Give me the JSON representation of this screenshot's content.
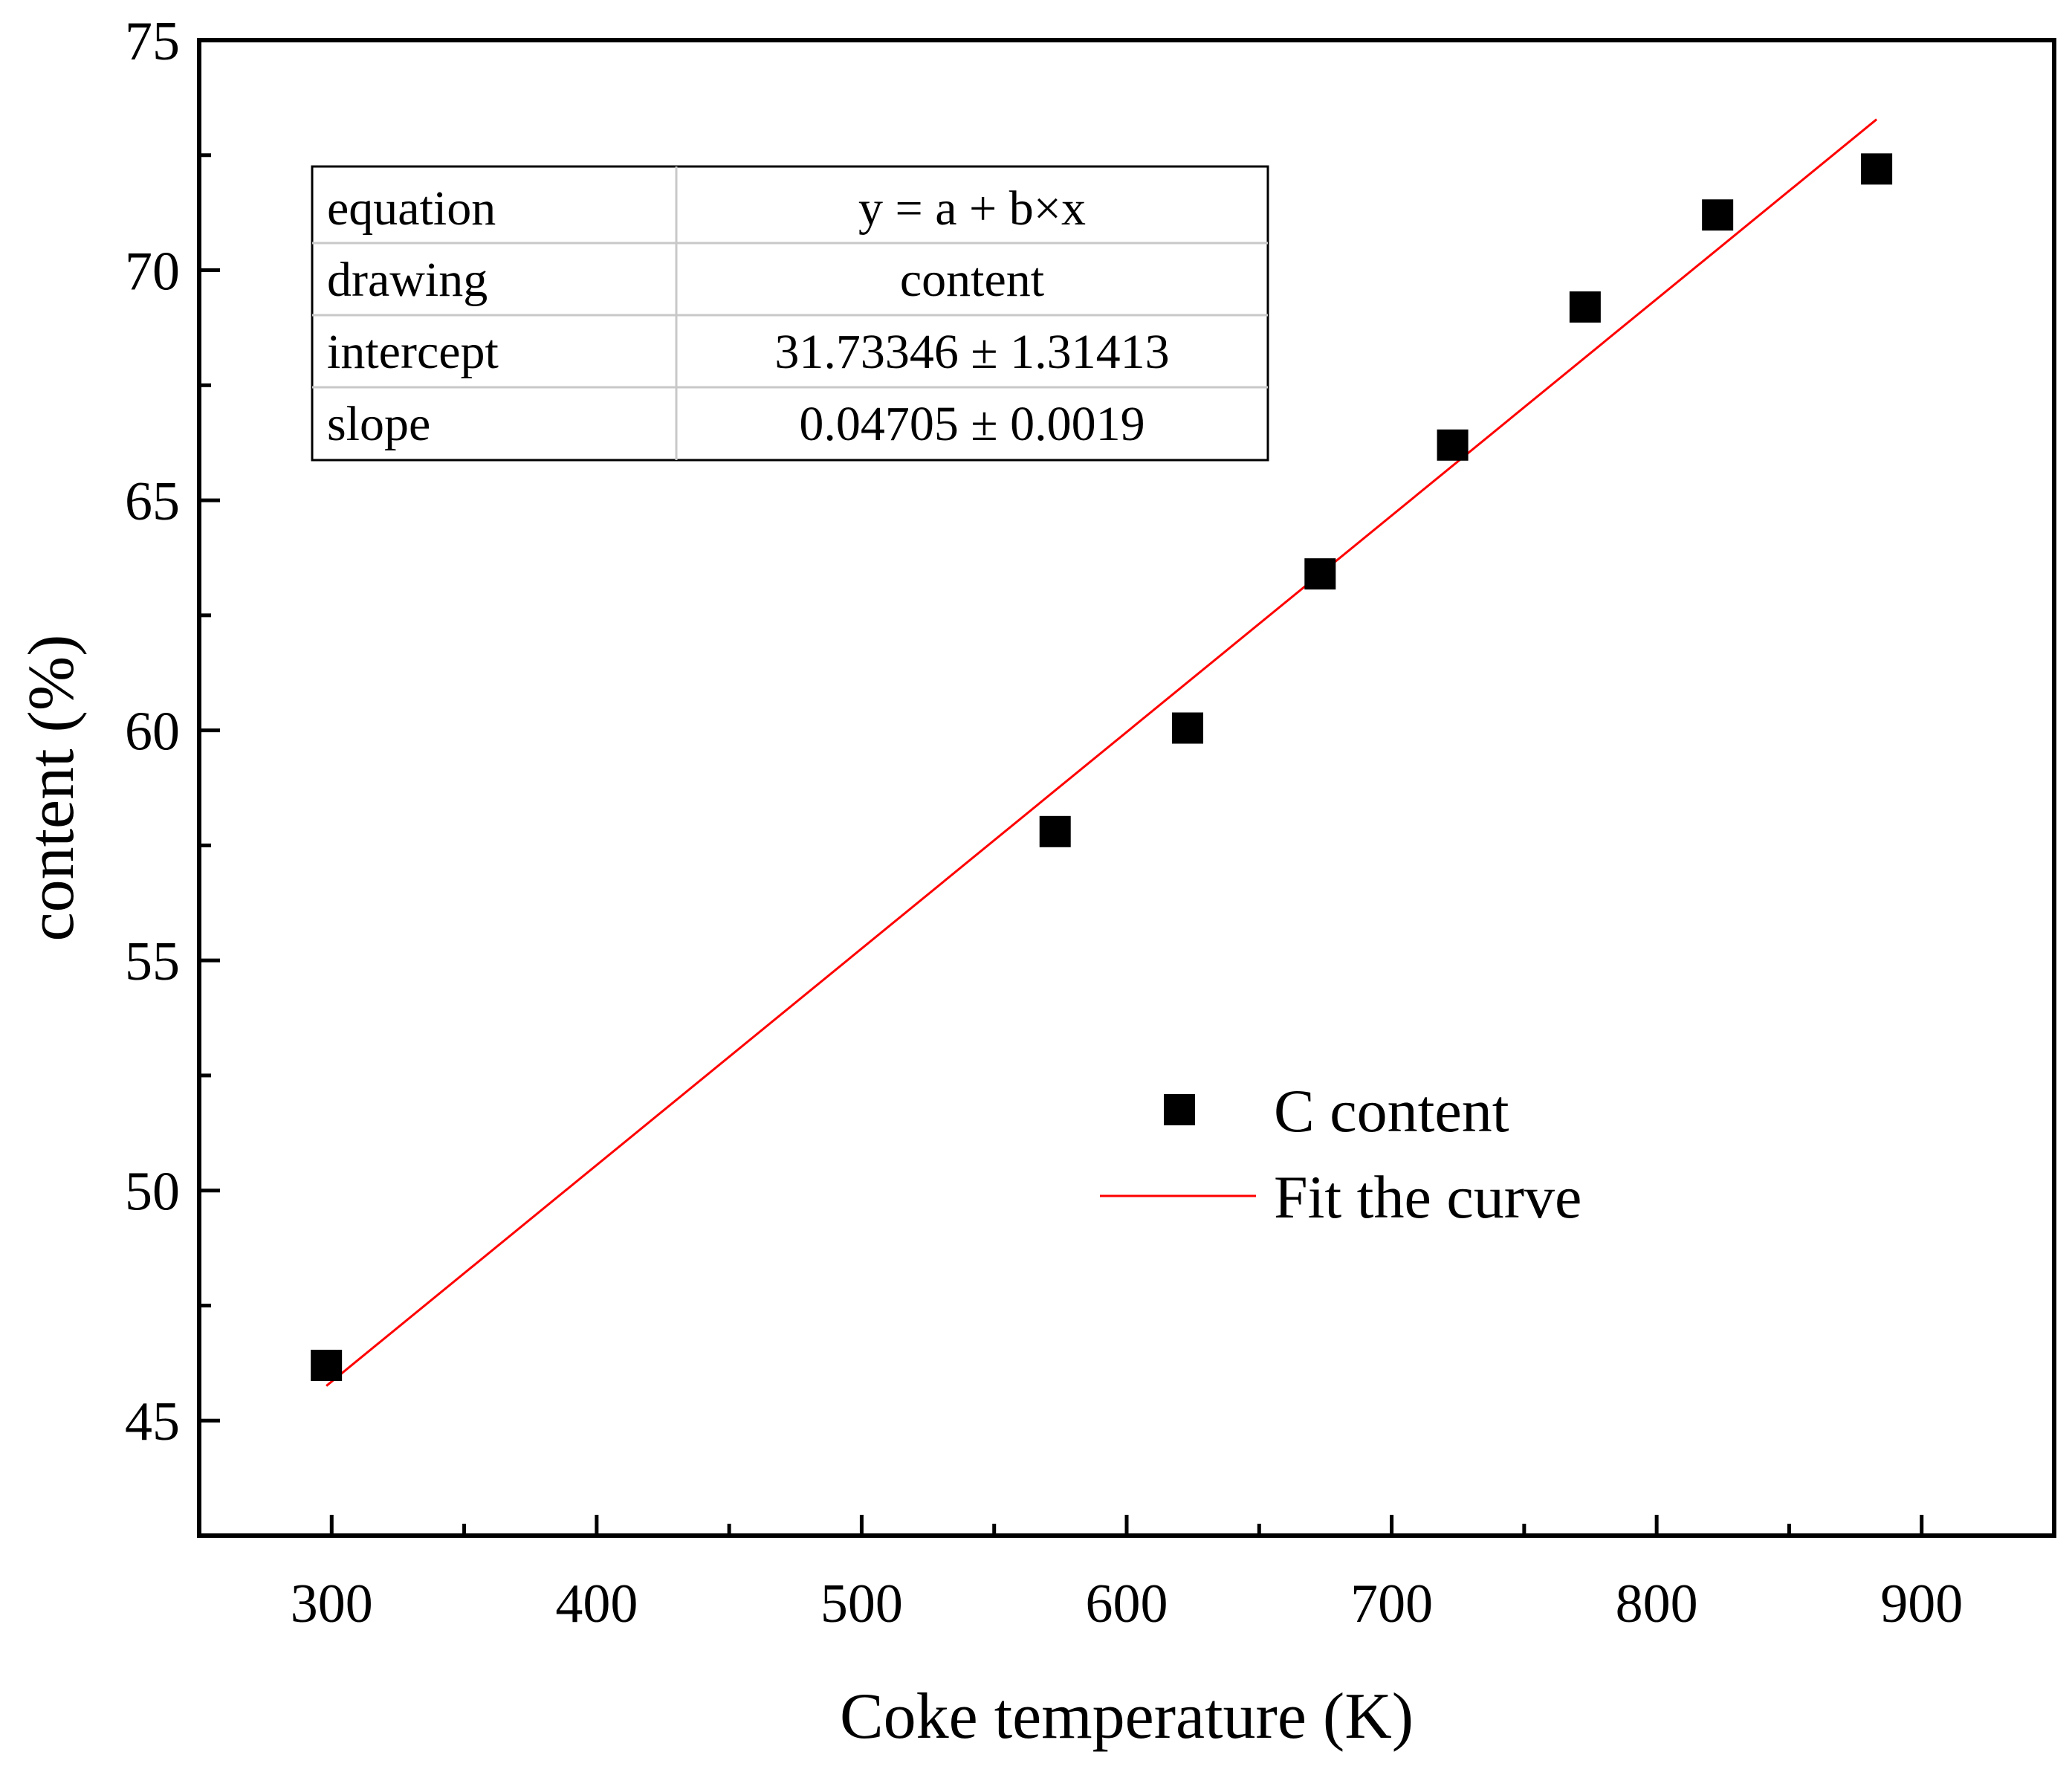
{
  "colors": {
    "axis": "#000000",
    "marker": "#000000",
    "fit_line": "#ff0000",
    "table_border": "#000000",
    "table_inner": "#c8c8c8",
    "background": "#ffffff"
  },
  "chart_data": {
    "type": "scatter",
    "title": "",
    "xlabel": "Coke temperature (K)",
    "ylabel": "content (%)",
    "xlim": [
      250,
      950
    ],
    "ylim": [
      42.5,
      75
    ],
    "x_ticks": [
      300,
      400,
      500,
      600,
      700,
      800,
      900
    ],
    "x_minor_ticks": [
      350,
      450,
      550,
      650,
      750,
      850
    ],
    "y_ticks": [
      45,
      50,
      55,
      60,
      65,
      70,
      75
    ],
    "y_minor_ticks": [
      47.5,
      52.5,
      57.5,
      62.5,
      67.5,
      72.5
    ],
    "grid": false,
    "series": [
      {
        "name": "C content",
        "marker": "square",
        "x": [
          298,
          573,
          623,
          673,
          723,
          773,
          823,
          883
        ],
        "y": [
          46.2,
          57.8,
          60.05,
          63.4,
          66.2,
          69.2,
          71.2,
          72.2
        ]
      },
      {
        "name": "Fit the curve",
        "type": "line",
        "intercept": 31.73346,
        "slope": 0.04705,
        "x_range": [
          298,
          883
        ]
      }
    ],
    "fit_table": {
      "rows": [
        {
          "label": "equation",
          "value": "y = a + b×x"
        },
        {
          "label": "drawing",
          "value": "content"
        },
        {
          "label": "intercept",
          "value": "31.73346 ± 1.31413"
        },
        {
          "label": "slope",
          "value": "0.04705 ± 0.0019"
        }
      ]
    },
    "legend": {
      "position": "center-right",
      "entries": [
        {
          "label": "C content",
          "symbol": "square"
        },
        {
          "label": "Fit the curve",
          "symbol": "line"
        }
      ]
    }
  }
}
